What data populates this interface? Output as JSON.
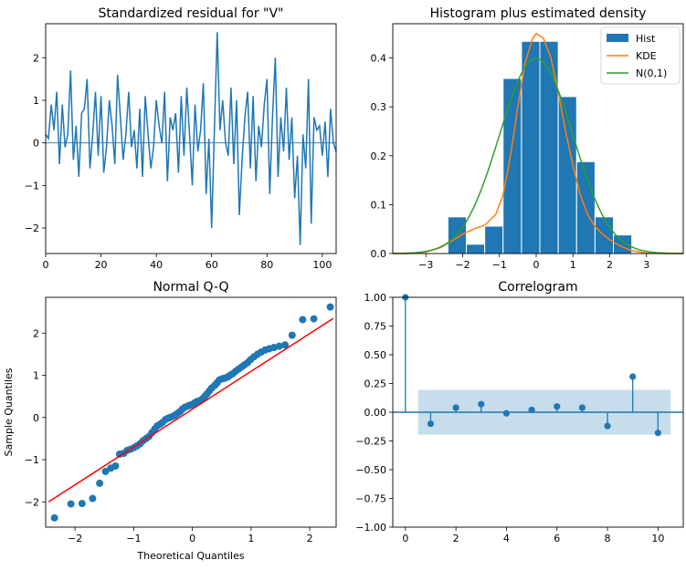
{
  "chart_data": [
    {
      "id": "resid",
      "type": "line",
      "title": "Standardized residual for \"V\"",
      "xlim": [
        0,
        105
      ],
      "ylim": [
        -2.6,
        2.8
      ],
      "xticks": [
        0,
        20,
        40,
        60,
        80,
        100
      ],
      "yticks": [
        -2,
        -1,
        0,
        1,
        2
      ],
      "color": "#1f77b4",
      "hline": 0,
      "series": [
        {
          "name": "",
          "x": [
            0,
            1,
            2,
            3,
            4,
            5,
            6,
            7,
            8,
            9,
            10,
            11,
            12,
            13,
            14,
            15,
            16,
            17,
            18,
            19,
            20,
            21,
            22,
            23,
            24,
            25,
            26,
            27,
            28,
            29,
            30,
            31,
            32,
            33,
            34,
            35,
            36,
            37,
            38,
            39,
            40,
            41,
            42,
            43,
            44,
            45,
            46,
            47,
            48,
            49,
            50,
            51,
            52,
            53,
            54,
            55,
            56,
            57,
            58,
            59,
            60,
            61,
            62,
            63,
            64,
            65,
            66,
            67,
            68,
            69,
            70,
            71,
            72,
            73,
            74,
            75,
            76,
            77,
            78,
            79,
            80,
            81,
            82,
            83,
            84,
            85,
            86,
            87,
            88,
            89,
            90,
            91,
            92,
            93,
            94,
            95,
            96,
            97,
            98,
            99,
            100,
            101,
            102,
            103,
            104,
            105
          ],
          "values": [
            0.2,
            0.1,
            0.9,
            0.3,
            1.2,
            -0.5,
            0.9,
            -0.1,
            0.2,
            1.7,
            -0.4,
            0.4,
            -0.8,
            0.7,
            0.8,
            1.5,
            -0.6,
            0.2,
            1.2,
            -0.3,
            1.1,
            -0.7,
            -0.1,
            1.0,
            0.4,
            -0.5,
            1.6,
            0.6,
            -0.4,
            0.2,
            1.2,
            -0.1,
            0.3,
            -0.6,
            0.8,
            -0.8,
            1.1,
            0.2,
            -0.6,
            -0.1,
            1.0,
            0.4,
            0.0,
            1.2,
            -0.9,
            0.6,
            0.3,
            0.7,
            -0.7,
            1.1,
            -0.3,
            1.3,
            0.2,
            -1.0,
            0.9,
            -0.2,
            0.3,
            1.4,
            -1.2,
            0.1,
            -2.0,
            0.3,
            2.6,
            0.3,
            1.0,
            0.0,
            -0.3,
            1.3,
            -0.5,
            1.0,
            -1.7,
            -0.4,
            0.6,
            1.2,
            -0.6,
            1.1,
            -0.9,
            0.4,
            -0.1,
            0.9,
            1.5,
            -1.2,
            0.6,
            2.0,
            -0.8,
            0.6,
            -0.2,
            1.3,
            -0.4,
            0.6,
            -1.3,
            -0.3,
            -2.4,
            0.2,
            -0.6,
            1.5,
            -1.9,
            0.6,
            0.3,
            0.4,
            -0.3,
            0.5,
            -0.8,
            0.8,
            0.0,
            -0.2
          ]
        }
      ]
    },
    {
      "id": "hist",
      "type": "bar",
      "title": "Histogram plus estimated density",
      "xlim": [
        -3.9,
        4.0
      ],
      "ylim": [
        0,
        0.47
      ],
      "xticks": [
        -3,
        -2,
        -1,
        0,
        1,
        2,
        3
      ],
      "yticks": [
        0.0,
        0.1,
        0.2,
        0.3,
        0.4
      ],
      "legend": {
        "placement": "top-right",
        "entries": [
          "Hist",
          "KDE",
          "N(0,1)"
        ]
      },
      "bins": [
        {
          "x0": -2.4,
          "x1": -1.9,
          "value": 0.075
        },
        {
          "x0": -1.9,
          "x1": -1.4,
          "value": 0.019
        },
        {
          "x0": -1.4,
          "x1": -0.9,
          "value": 0.056
        },
        {
          "x0": -0.9,
          "x1": -0.4,
          "value": 0.358
        },
        {
          "x0": -0.4,
          "x1": 0.1,
          "value": 0.434
        },
        {
          "x0": 0.1,
          "x1": 0.6,
          "value": 0.434
        },
        {
          "x0": 0.6,
          "x1": 1.1,
          "value": 0.321
        },
        {
          "x0": 1.1,
          "x1": 1.6,
          "value": 0.188
        },
        {
          "x0": 1.6,
          "x1": 2.1,
          "value": 0.075
        },
        {
          "x0": 2.1,
          "x1": 2.6,
          "value": 0.038
        }
      ],
      "kde": {
        "x": [
          -3.9,
          -3.5,
          -3.0,
          -2.6,
          -2.2,
          -2.0,
          -1.7,
          -1.4,
          -1.1,
          -0.9,
          -0.7,
          -0.5,
          -0.3,
          -0.1,
          0.0,
          0.2,
          0.4,
          0.6,
          0.8,
          1.0,
          1.2,
          1.4,
          1.6,
          1.8,
          2.0,
          2.3,
          2.6,
          3.0,
          3.5,
          4.0
        ],
        "values": [
          0.0,
          0.0,
          0.003,
          0.012,
          0.03,
          0.04,
          0.05,
          0.058,
          0.08,
          0.12,
          0.2,
          0.3,
          0.39,
          0.44,
          0.45,
          0.44,
          0.4,
          0.33,
          0.25,
          0.18,
          0.12,
          0.08,
          0.055,
          0.04,
          0.028,
          0.015,
          0.006,
          0.001,
          0.0,
          0.0
        ]
      },
      "normal": {
        "mean": 0,
        "sd": 1
      }
    },
    {
      "id": "qq",
      "type": "scatter",
      "title": "Normal Q-Q",
      "xlabel": "Theoretical Quantiles",
      "ylabel": "Sample Quantiles",
      "xlim": [
        -2.5,
        2.45
      ],
      "ylim": [
        -2.6,
        2.85
      ],
      "xticks": [
        -2,
        -1,
        0,
        1,
        2
      ],
      "yticks": [
        -2,
        -1,
        0,
        1,
        2
      ],
      "line": {
        "x": [
          -2.45,
          2.4
        ],
        "y": [
          -2.0,
          2.35
        ],
        "color": "#ff0000"
      },
      "points": {
        "x": [
          -2.35,
          -2.07,
          -1.88,
          -1.7,
          -1.58,
          -1.48,
          -1.39,
          -1.31,
          -1.24,
          -1.17,
          -1.11,
          -1.05,
          -0.99,
          -0.94,
          -0.89,
          -0.84,
          -0.79,
          -0.74,
          -0.69,
          -0.64,
          -0.6,
          -0.55,
          -0.51,
          -0.46,
          -0.42,
          -0.38,
          -0.33,
          -0.29,
          -0.25,
          -0.21,
          -0.17,
          -0.13,
          -0.08,
          -0.04,
          0.0,
          0.04,
          0.08,
          0.13,
          0.17,
          0.21,
          0.25,
          0.29,
          0.33,
          0.38,
          0.42,
          0.46,
          0.51,
          0.55,
          0.6,
          0.64,
          0.69,
          0.74,
          0.79,
          0.84,
          0.89,
          0.94,
          0.99,
          1.05,
          1.11,
          1.17,
          1.24,
          1.31,
          1.39,
          1.48,
          1.58,
          1.7,
          1.88,
          2.07,
          2.35
        ],
        "y": [
          -2.38,
          -2.05,
          -2.04,
          -1.92,
          -1.56,
          -1.28,
          -1.2,
          -1.15,
          -0.87,
          -0.85,
          -0.78,
          -0.75,
          -0.71,
          -0.67,
          -0.62,
          -0.55,
          -0.5,
          -0.45,
          -0.36,
          -0.27,
          -0.2,
          -0.16,
          -0.12,
          -0.05,
          -0.02,
          0.0,
          0.03,
          0.06,
          0.1,
          0.14,
          0.2,
          0.24,
          0.27,
          0.29,
          0.31,
          0.35,
          0.38,
          0.4,
          0.44,
          0.5,
          0.56,
          0.63,
          0.7,
          0.76,
          0.82,
          0.89,
          0.92,
          0.93,
          0.96,
          1.0,
          1.04,
          1.1,
          1.15,
          1.2,
          1.25,
          1.3,
          1.37,
          1.44,
          1.5,
          1.55,
          1.6,
          1.63,
          1.66,
          1.69,
          1.72,
          1.95,
          2.32,
          2.34,
          2.62
        ],
        "color": "#1f77b4"
      }
    },
    {
      "id": "corr",
      "type": "bar",
      "title": "Correlogram",
      "xlim": [
        -0.5,
        11.0
      ],
      "ylim": [
        -1.0,
        1.0
      ],
      "xticks": [
        0,
        2,
        4,
        6,
        8,
        10
      ],
      "yticks": [
        -1.0,
        -0.75,
        -0.5,
        -0.25,
        0.0,
        0.25,
        0.5,
        0.75,
        1.0
      ],
      "ytick_labels": [
        "−1.00",
        "−0.75",
        "−0.50",
        "−0.25",
        "0.00",
        "0.25",
        "0.50",
        "0.75",
        "1.00"
      ],
      "lags": [
        0,
        1,
        2,
        3,
        4,
        5,
        6,
        7,
        8,
        9,
        10
      ],
      "values": [
        1.0,
        -0.1,
        0.04,
        0.07,
        -0.01,
        0.02,
        0.05,
        0.04,
        -0.12,
        0.31,
        -0.18
      ],
      "confidence_band": {
        "from": 0.5,
        "to": 10.5,
        "upper": 0.195,
        "lower": -0.195
      }
    }
  ]
}
